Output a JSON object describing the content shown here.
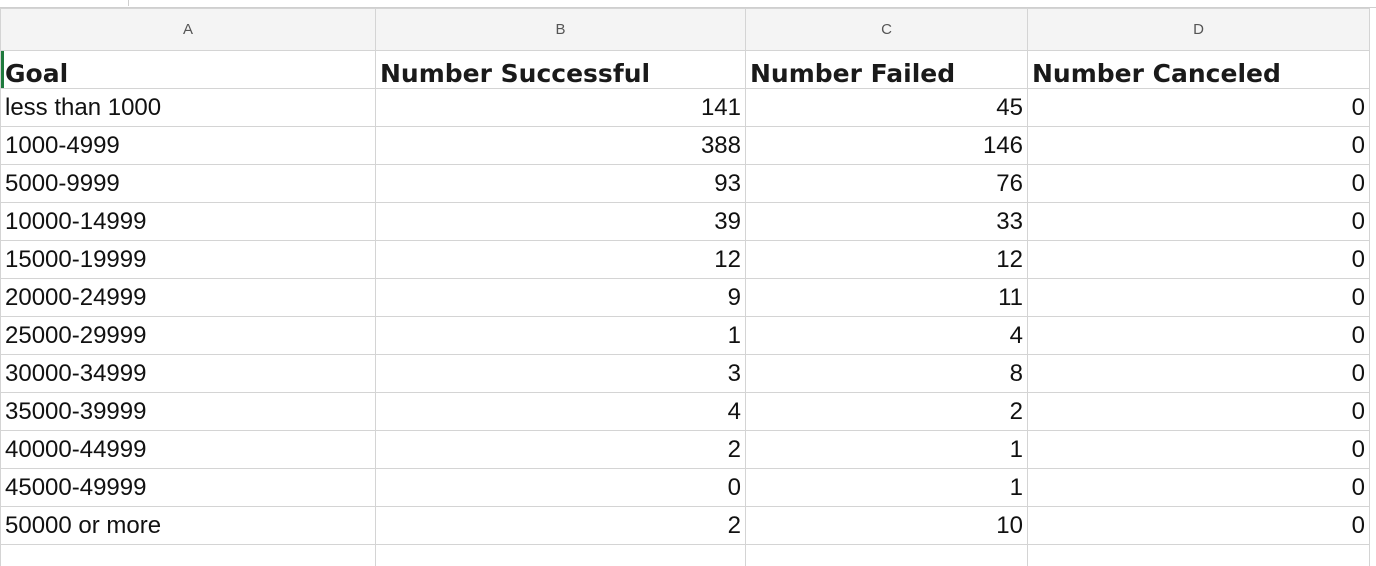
{
  "columns": [
    "A",
    "B",
    "C",
    "D"
  ],
  "headers": [
    "Goal",
    "Number Successful",
    "Number Failed",
    "Number Canceled"
  ],
  "rows": [
    [
      "less than 1000",
      "141",
      "45",
      "0"
    ],
    [
      "1000-4999",
      "388",
      "146",
      "0"
    ],
    [
      "5000-9999",
      "93",
      "76",
      "0"
    ],
    [
      "10000-14999",
      "39",
      "33",
      "0"
    ],
    [
      "15000-19999",
      "12",
      "12",
      "0"
    ],
    [
      "20000-24999",
      "9",
      "11",
      "0"
    ],
    [
      "25000-29999",
      "1",
      "4",
      "0"
    ],
    [
      "30000-34999",
      "3",
      "8",
      "0"
    ],
    [
      "35000-39999",
      "4",
      "2",
      "0"
    ],
    [
      "40000-44999",
      "2",
      "1",
      "0"
    ],
    [
      "45000-49999",
      "0",
      "1",
      "0"
    ],
    [
      "50000 or more",
      "2",
      "10",
      "0"
    ]
  ],
  "selection_color": "#1f7a3d"
}
